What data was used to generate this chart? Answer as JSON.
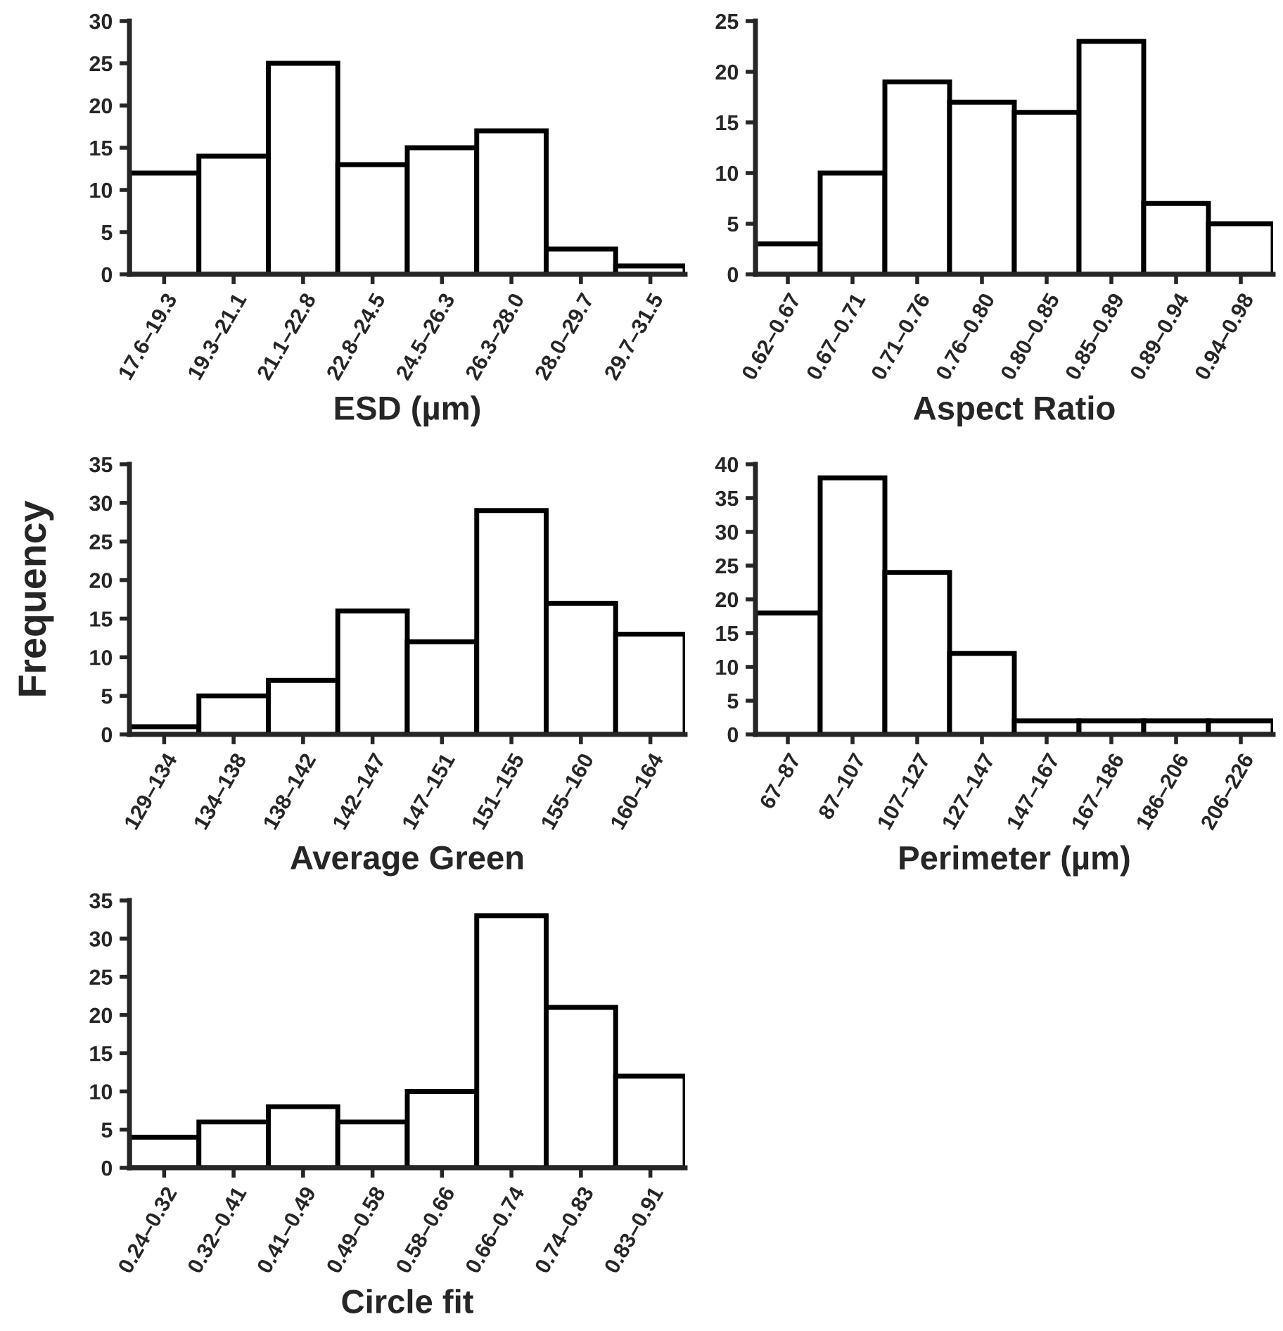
{
  "chart_data": [
    {
      "type": "bar",
      "xlabel": "ESD (µm)",
      "categories": [
        "17.6–19.3",
        "19.3–21.1",
        "21.1–22.8",
        "22.8–24.5",
        "24.5–26.3",
        "26.3–28.0",
        "28.0–29.7",
        "29.7–31.5"
      ],
      "values": [
        12,
        14,
        25,
        13,
        15,
        17,
        3,
        1
      ],
      "color": "#ffffff",
      "ylim": [
        0,
        30
      ],
      "yticks": [
        0,
        5,
        10,
        15,
        20,
        25,
        30
      ]
    },
    {
      "type": "bar",
      "xlabel": "Aspect Ratio",
      "categories": [
        "0.62–0.67",
        "0.67–0.71",
        "0.71–0.76",
        "0.76–0.80",
        "0.80–0.85",
        "0.85–0.89",
        "0.89–0.94",
        "0.94–0.98"
      ],
      "values": [
        3,
        10,
        19,
        17,
        16,
        23,
        7,
        5
      ],
      "color": "#ffffff",
      "ylim": [
        0,
        25
      ],
      "yticks": [
        0,
        5,
        10,
        15,
        20,
        25
      ]
    },
    {
      "type": "bar",
      "xlabel": "Average Green",
      "ylabel": "Frequency",
      "categories": [
        "129–134",
        "134–138",
        "138–142",
        "142–147",
        "147–151",
        "151–155",
        "155–160",
        "160–164"
      ],
      "values": [
        1,
        5,
        7,
        16,
        12,
        29,
        17,
        13
      ],
      "color": "#ffffff",
      "ylim": [
        0,
        35
      ],
      "yticks": [
        0,
        5,
        10,
        15,
        20,
        25,
        30,
        35
      ]
    },
    {
      "type": "bar",
      "xlabel": "Perimeter (µm)",
      "categories": [
        "67–87",
        "87–107",
        "107–127",
        "127–147",
        "147–167",
        "167–186",
        "186–206",
        "206–226"
      ],
      "values": [
        18,
        38,
        24,
        12,
        2,
        2,
        2,
        2
      ],
      "color": "#ffffff",
      "ylim": [
        0,
        40
      ],
      "yticks": [
        0,
        5,
        10,
        15,
        20,
        25,
        30,
        35,
        40
      ]
    },
    {
      "type": "bar",
      "xlabel": "Circle fit",
      "categories": [
        "0.24–0.32",
        "0.32–0.41",
        "0.41–0.49",
        "0.49–0.58",
        "0.58–0.66",
        "0.66–0.74",
        "0.74–0.83",
        "0.83–0.91"
      ],
      "values": [
        4,
        6,
        8,
        6,
        10,
        33,
        21,
        12
      ],
      "color": "#ffffff",
      "ylim": [
        0,
        35
      ],
      "yticks": [
        0,
        5,
        10,
        15,
        20,
        25,
        30,
        35
      ]
    }
  ]
}
